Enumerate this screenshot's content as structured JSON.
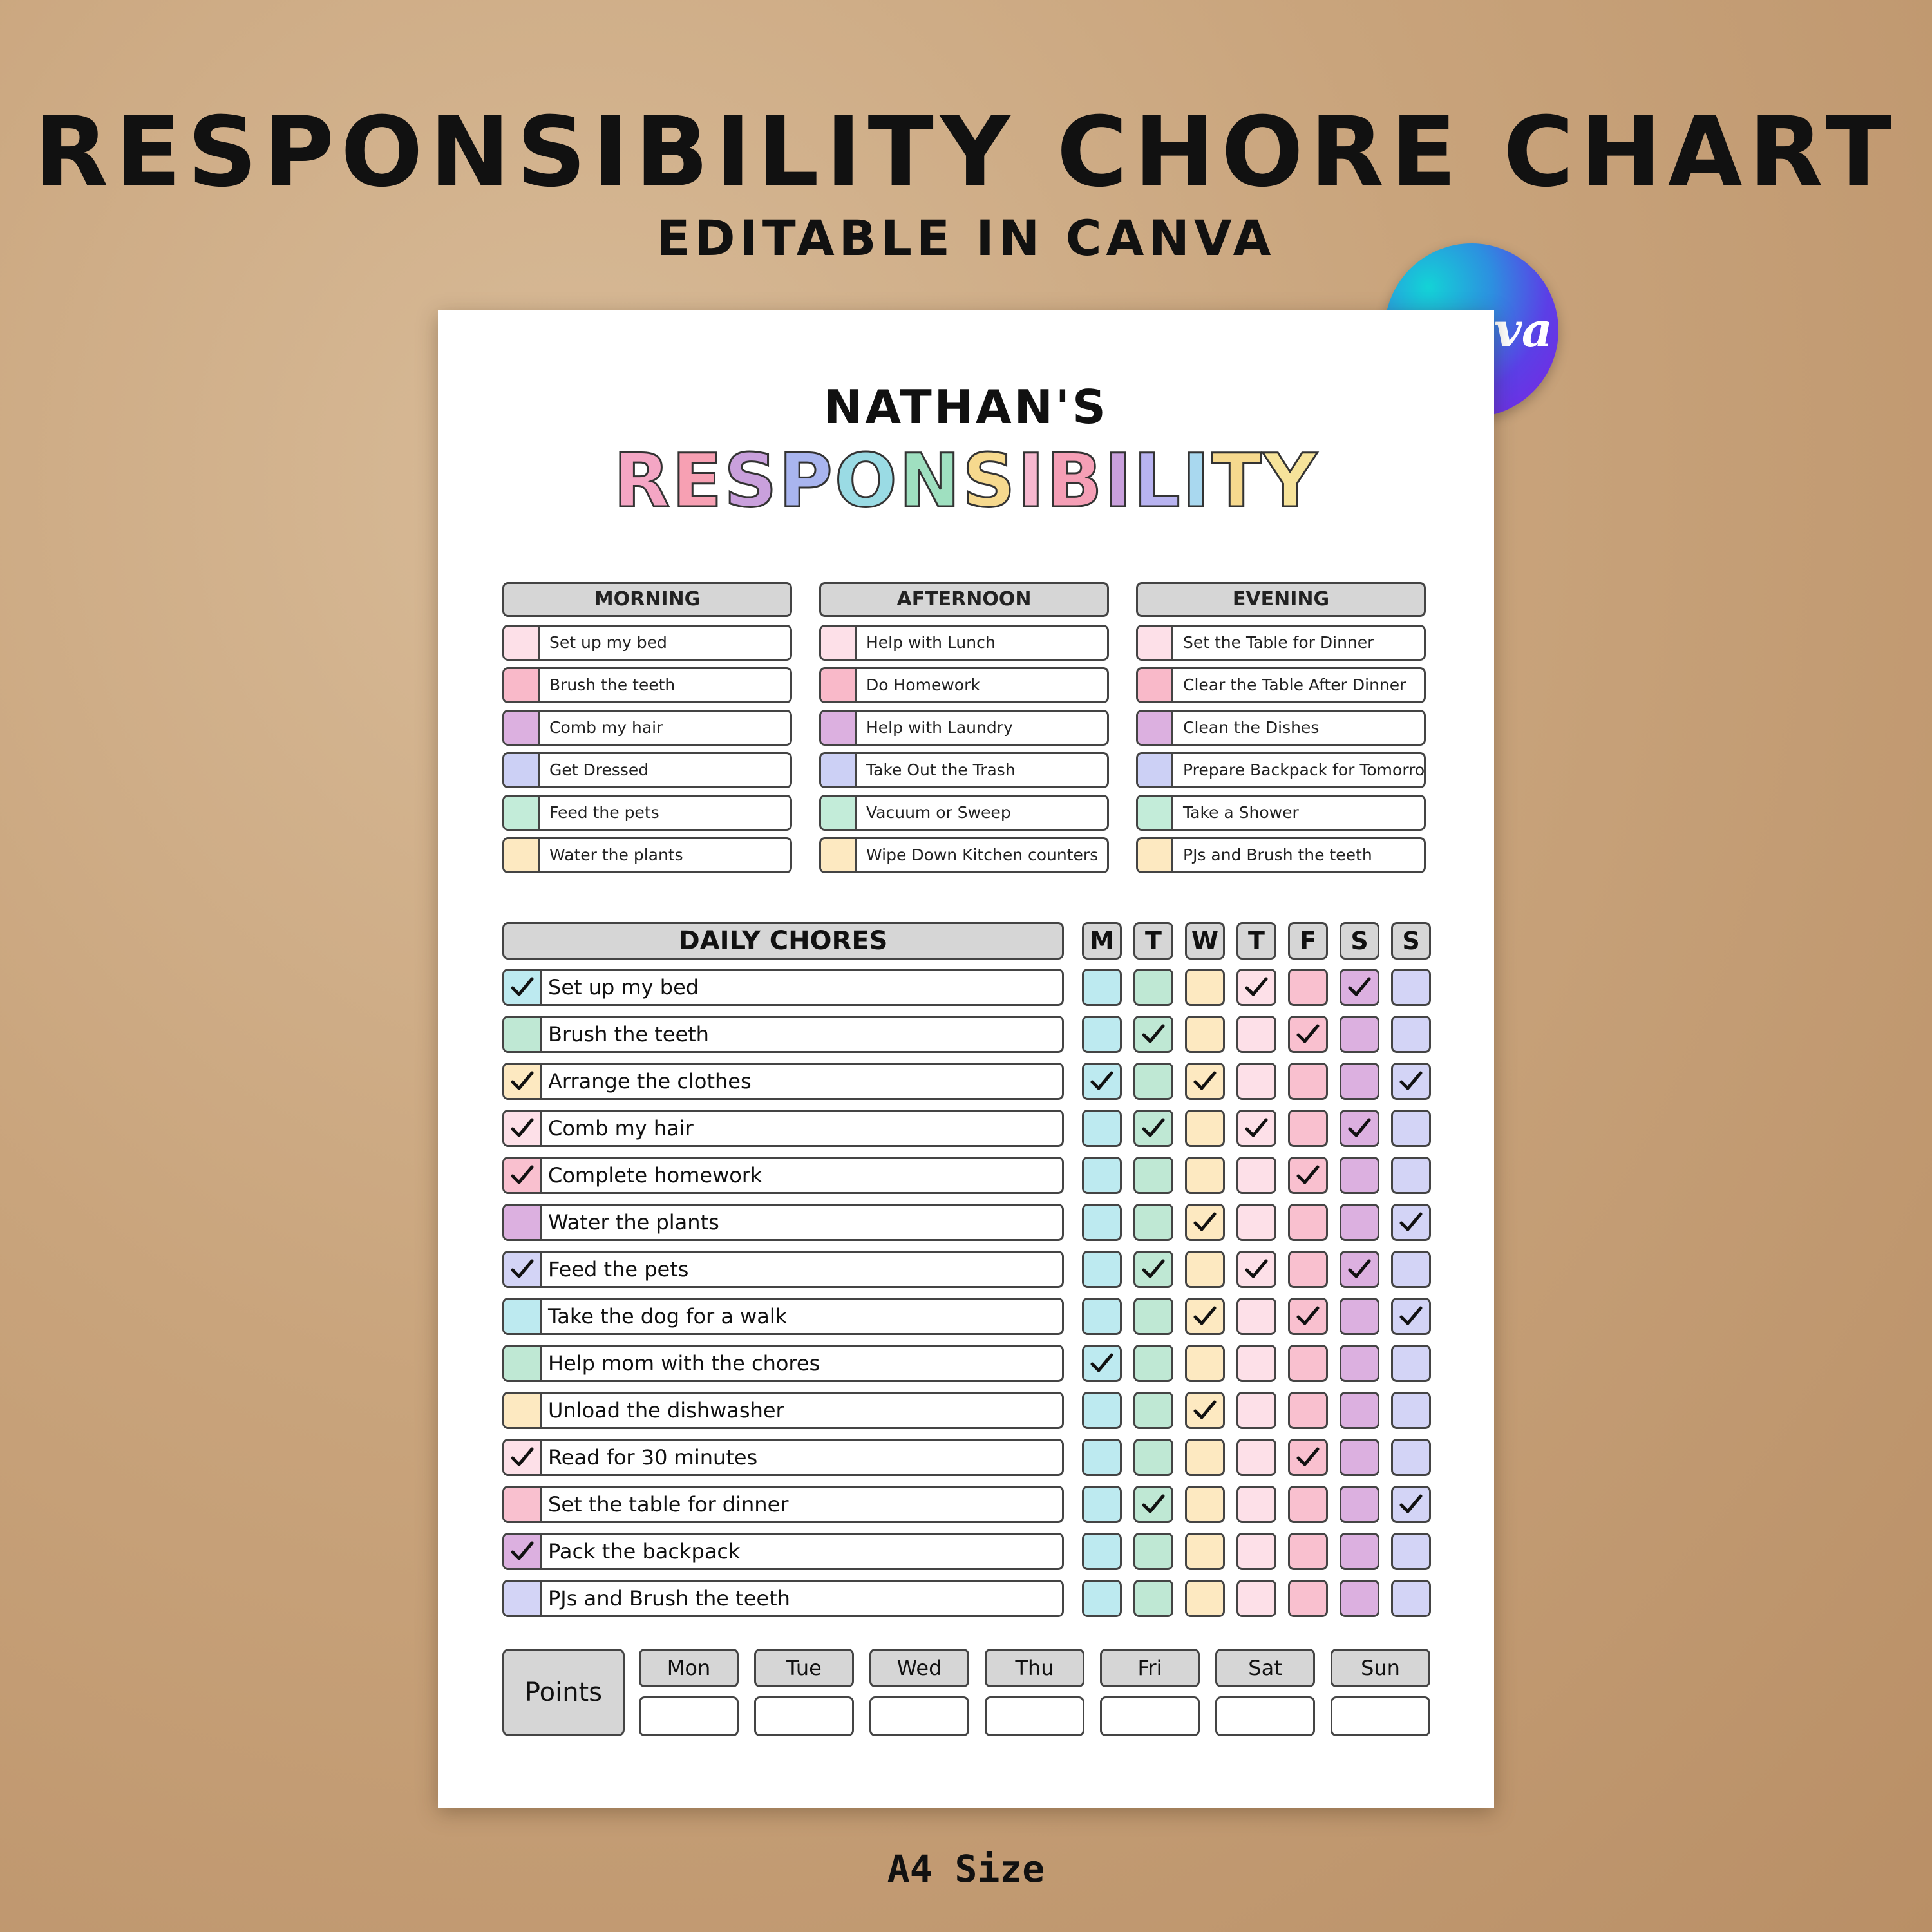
{
  "header": {
    "title": "RESPONSIBILITY CHORE CHART",
    "subtitle": "EDITABLE IN CANVA",
    "badge_text": "Canva"
  },
  "footer": {
    "size_label": "A4 Size"
  },
  "chart": {
    "name_line": "NATHAN'S",
    "title_letters": [
      "R",
      "E",
      "S",
      "P",
      "O",
      "N",
      "S",
      "I",
      "B",
      "I",
      "L",
      "I",
      "T",
      "Y"
    ],
    "title_colors": [
      "#f4a6c4",
      "#f7a0b3",
      "#c9a0dc",
      "#a9b5ef",
      "#9adbe4",
      "#9fe0c0",
      "#f6d98e",
      "#f7b8cf",
      "#f59fb6",
      "#c9a0dc",
      "#b8b3f0",
      "#a9d8ef",
      "#f6d98e",
      "#f6e39a"
    ],
    "swatch_colors": [
      "#fde0e8",
      "#f9b9c9",
      "#dcb0e0",
      "#ccd0f5",
      "#c3ecd9",
      "#fde9c1"
    ],
    "sections": [
      {
        "heading": "MORNING",
        "items": [
          "Set up my bed",
          "Brush the teeth",
          "Comb my hair",
          "Get Dressed",
          "Feed the pets",
          "Water the plants"
        ]
      },
      {
        "heading": "AFTERNOON",
        "items": [
          "Help with Lunch",
          "Do Homework",
          "Help with Laundry",
          "Take Out the Trash",
          "Vacuum or Sweep",
          "Wipe Down Kitchen counters"
        ]
      },
      {
        "heading": "EVENING",
        "items": [
          "Set the Table for Dinner",
          "Clear the Table After Dinner",
          "Clean the Dishes",
          "Prepare Backpack for Tomorrow",
          "Take a Shower",
          "PJs and Brush the teeth"
        ]
      }
    ],
    "daily": {
      "heading": "DAILY CHORES",
      "day_letters": [
        "M",
        "T",
        "W",
        "T",
        "F",
        "S",
        "S"
      ],
      "day_colors": [
        "#bdeaf0",
        "#bfe8d4",
        "#fde9c1",
        "#fde0e8",
        "#f9c0cf",
        "#dcb0e0",
        "#d3d4f6"
      ],
      "chores": [
        {
          "label": "Set up my bed",
          "color": "#bdeaf0",
          "done": true,
          "days": [
            0,
            0,
            0,
            1,
            0,
            1,
            0
          ]
        },
        {
          "label": "Brush the teeth",
          "color": "#bfe8d4",
          "done": false,
          "days": [
            0,
            1,
            0,
            0,
            1,
            0,
            0
          ]
        },
        {
          "label": "Arrange the clothes",
          "color": "#fde9c1",
          "done": true,
          "days": [
            1,
            0,
            1,
            0,
            0,
            0,
            1
          ]
        },
        {
          "label": "Comb my hair",
          "color": "#fde0e8",
          "done": true,
          "days": [
            0,
            1,
            0,
            1,
            0,
            1,
            0
          ]
        },
        {
          "label": "Complete homework",
          "color": "#f9c0cf",
          "done": true,
          "days": [
            0,
            0,
            0,
            0,
            1,
            0,
            0
          ]
        },
        {
          "label": "Water the plants",
          "color": "#dcb0e0",
          "done": false,
          "days": [
            0,
            0,
            1,
            0,
            0,
            0,
            1
          ]
        },
        {
          "label": "Feed the pets",
          "color": "#d3d4f6",
          "done": true,
          "days": [
            0,
            1,
            0,
            1,
            0,
            1,
            0
          ]
        },
        {
          "label": "Take the dog for a walk",
          "color": "#bdeaf0",
          "done": false,
          "days": [
            0,
            0,
            1,
            0,
            1,
            0,
            1
          ]
        },
        {
          "label": "Help mom with the chores",
          "color": "#bfe8d4",
          "done": false,
          "days": [
            1,
            0,
            0,
            0,
            0,
            0,
            0
          ]
        },
        {
          "label": "Unload the dishwasher",
          "color": "#fde9c1",
          "done": false,
          "days": [
            0,
            0,
            1,
            0,
            0,
            0,
            0
          ]
        },
        {
          "label": "Read for 30 minutes",
          "color": "#fde0e8",
          "done": true,
          "days": [
            0,
            0,
            0,
            0,
            1,
            0,
            0
          ]
        },
        {
          "label": "Set the table for dinner",
          "color": "#f9c0cf",
          "done": false,
          "days": [
            0,
            1,
            0,
            0,
            0,
            0,
            1
          ]
        },
        {
          "label": "Pack the backpack",
          "color": "#dcb0e0",
          "done": true,
          "days": [
            0,
            0,
            0,
            0,
            0,
            0,
            0
          ]
        },
        {
          "label": "PJs and Brush the teeth",
          "color": "#d3d4f6",
          "done": false,
          "days": [
            0,
            0,
            0,
            0,
            0,
            0,
            0
          ]
        }
      ]
    },
    "points": {
      "label": "Points",
      "days": [
        "Mon",
        "Tue",
        "Wed",
        "Thu",
        "Fri",
        "Sat",
        "Sun"
      ]
    }
  }
}
